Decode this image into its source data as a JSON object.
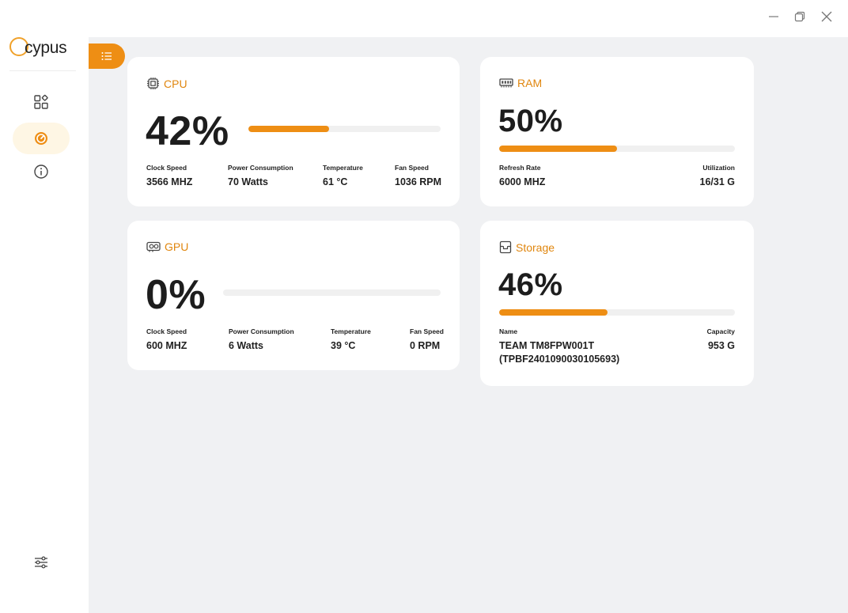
{
  "app": {
    "logo_text": "cypus"
  },
  "sidebar": {
    "items": [
      {
        "icon": "dashboard-icon"
      },
      {
        "icon": "gauge-icon",
        "active": true
      },
      {
        "icon": "info-icon"
      }
    ],
    "bottom": {
      "icon": "settings-sliders-icon"
    }
  },
  "colors": {
    "accent": "#ee8e14",
    "accent_text": "#e0860e",
    "background": "#f0f1f3",
    "bar_track": "#f0f0f0",
    "active_nav": "#fef6e4"
  },
  "cpu": {
    "title": "CPU",
    "percent_text": "42%",
    "usage_fraction": 0.42,
    "stats": [
      {
        "label": "Clock Speed",
        "value": "3566 MHZ"
      },
      {
        "label": "Power Consumption",
        "value": "70 Watts"
      },
      {
        "label": "Temperature",
        "value": "61 °C"
      },
      {
        "label": "Fan Speed",
        "value": "1036 RPM"
      }
    ]
  },
  "gpu": {
    "title": "GPU",
    "percent_text": "0%",
    "usage_fraction": 0,
    "stats": [
      {
        "label": "Clock Speed",
        "value": "600 MHZ"
      },
      {
        "label": "Power Consumption",
        "value": "6 Watts"
      },
      {
        "label": "Temperature",
        "value": "39 °C"
      },
      {
        "label": "Fan Speed",
        "value": "0 RPM"
      }
    ]
  },
  "ram": {
    "title": "RAM",
    "percent_text": "50%",
    "usage_fraction": 0.5,
    "stats": [
      {
        "label": "Refresh Rate",
        "value": "6000 MHZ"
      },
      {
        "label": "Utilization",
        "value": "16/31 G"
      }
    ]
  },
  "storage": {
    "title": "Storage",
    "percent_text": "46%",
    "usage_fraction": 0.46,
    "stats": [
      {
        "label": "Name",
        "value": "TEAM TM8FPW001T",
        "value2": "(TPBF2401090030105693)"
      },
      {
        "label": "Capacity",
        "value": "953 G"
      }
    ]
  }
}
